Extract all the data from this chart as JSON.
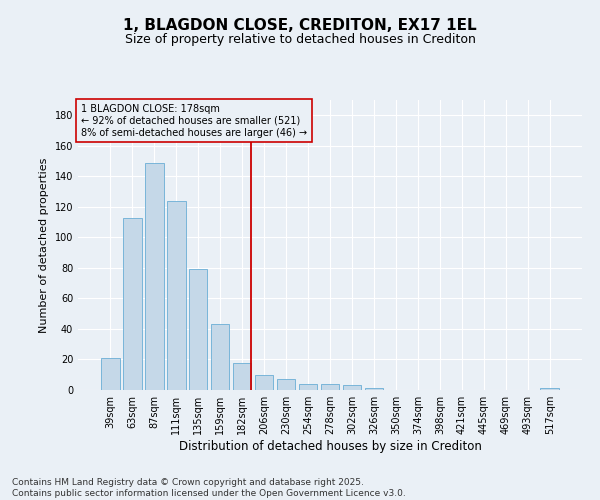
{
  "title": "1, BLAGDON CLOSE, CREDITON, EX17 1EL",
  "subtitle": "Size of property relative to detached houses in Crediton",
  "xlabel": "Distribution of detached houses by size in Crediton",
  "ylabel": "Number of detached properties",
  "categories": [
    "39sqm",
    "63sqm",
    "87sqm",
    "111sqm",
    "135sqm",
    "159sqm",
    "182sqm",
    "206sqm",
    "230sqm",
    "254sqm",
    "278sqm",
    "302sqm",
    "326sqm",
    "350sqm",
    "374sqm",
    "398sqm",
    "421sqm",
    "445sqm",
    "469sqm",
    "493sqm",
    "517sqm"
  ],
  "values": [
    21,
    113,
    149,
    124,
    79,
    43,
    18,
    10,
    7,
    4,
    4,
    3,
    1,
    0,
    0,
    0,
    0,
    0,
    0,
    0,
    1
  ],
  "bar_color": "#c5d8e8",
  "bar_edgecolor": "#6aaed6",
  "vline_idx": 6,
  "vline_color": "#cc0000",
  "annotation_text": "1 BLAGDON CLOSE: 178sqm\n← 92% of detached houses are smaller (521)\n8% of semi-detached houses are larger (46) →",
  "annotation_box_color": "#cc0000",
  "ylim": [
    0,
    190
  ],
  "yticks": [
    0,
    20,
    40,
    60,
    80,
    100,
    120,
    140,
    160,
    180
  ],
  "background_color": "#eaf0f6",
  "grid_color": "#ffffff",
  "footer": "Contains HM Land Registry data © Crown copyright and database right 2025.\nContains public sector information licensed under the Open Government Licence v3.0.",
  "title_fontsize": 11,
  "subtitle_fontsize": 9,
  "xlabel_fontsize": 8.5,
  "ylabel_fontsize": 8,
  "footer_fontsize": 6.5,
  "tick_fontsize": 7,
  "annotation_fontsize": 7
}
